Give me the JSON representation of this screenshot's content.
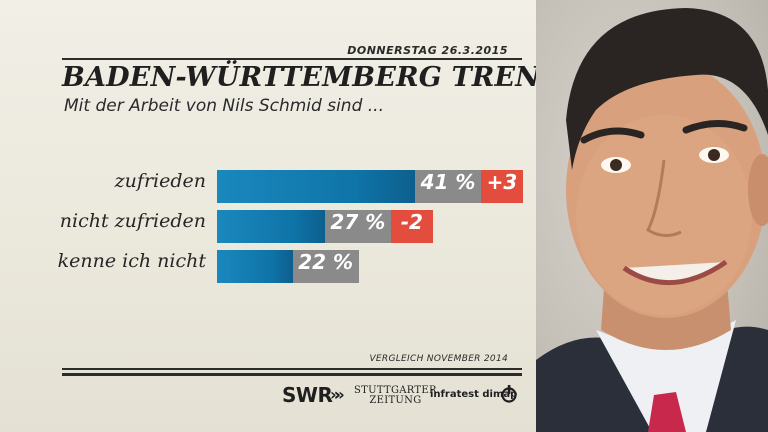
{
  "header": {
    "date": "DONNERSTAG 26.3.2015"
  },
  "chart_data": {
    "type": "bar",
    "orientation": "horizontal",
    "title": "BADEN-WÜRTTEMBERG TREND",
    "subtitle": "Mit der Arbeit von Nils Schmid sind ...",
    "categories": [
      "zufrieden",
      "nicht zufrieden",
      "kenne ich nicht"
    ],
    "values": [
      41,
      27,
      22
    ],
    "value_labels": [
      "41 %",
      "27 %",
      "22 %"
    ],
    "changes": [
      "+3",
      "-2",
      null
    ],
    "comparison_note": "VERGLEICH NOVEMBER 2014",
    "xlim": [
      0,
      41
    ],
    "grid": false,
    "legend": "none",
    "colors": {
      "bar": "#1480b6",
      "value_box": "#8a8a8a",
      "change_box": "#e34d3e"
    }
  },
  "footer": {
    "swr": "SWR",
    "swr_arrows": "»»",
    "stuttgarter_line1": "STUTTGARTER",
    "stuttgarter_line2": "ZEITUNG",
    "infratest": "infratest dimap"
  },
  "photo": {
    "subject": "portrait"
  }
}
